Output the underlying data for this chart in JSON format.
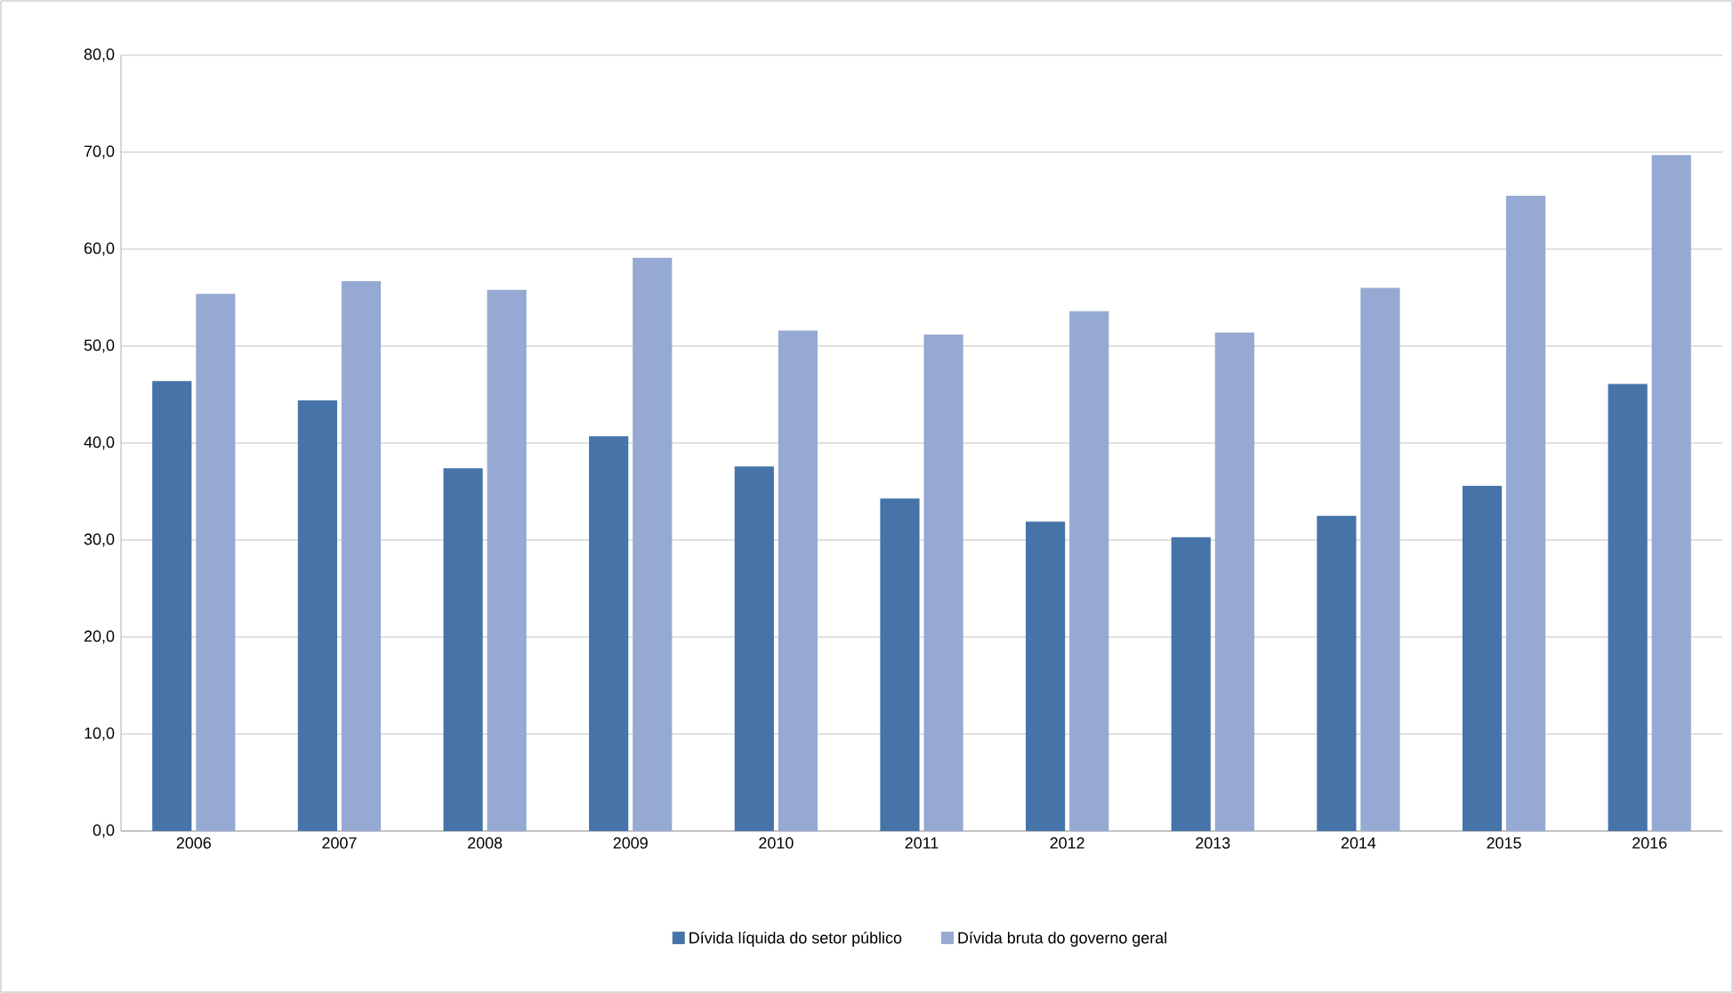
{
  "chart_data": {
    "type": "bar",
    "categories": [
      "2006",
      "2007",
      "2008",
      "2009",
      "2010",
      "2011",
      "2012",
      "2013",
      "2014",
      "2015",
      "2016"
    ],
    "series": [
      {
        "name": "Dívida líquida do setor público",
        "color": "#4673a8",
        "values": [
          46.4,
          44.4,
          37.4,
          40.7,
          37.6,
          34.3,
          31.9,
          30.3,
          32.5,
          35.6,
          46.1
        ]
      },
      {
        "name": "Dívida bruta do governo geral",
        "color": "#95a9d3",
        "values": [
          55.4,
          56.7,
          55.8,
          59.1,
          51.6,
          51.2,
          53.6,
          51.4,
          56.0,
          65.5,
          69.7
        ]
      }
    ],
    "ylim": [
      0,
      80
    ],
    "yticks": [
      {
        "value": 0,
        "label": "0,0"
      },
      {
        "value": 10,
        "label": "10,0"
      },
      {
        "value": 20,
        "label": "20,0"
      },
      {
        "value": 30,
        "label": "30,0"
      },
      {
        "value": 40,
        "label": "40,0"
      },
      {
        "value": 50,
        "label": "50,0"
      },
      {
        "value": 60,
        "label": "60,0"
      },
      {
        "value": 70,
        "label": "70,0"
      },
      {
        "value": 80,
        "label": "80,0"
      }
    ],
    "grid": "y",
    "legend": "bottom"
  }
}
